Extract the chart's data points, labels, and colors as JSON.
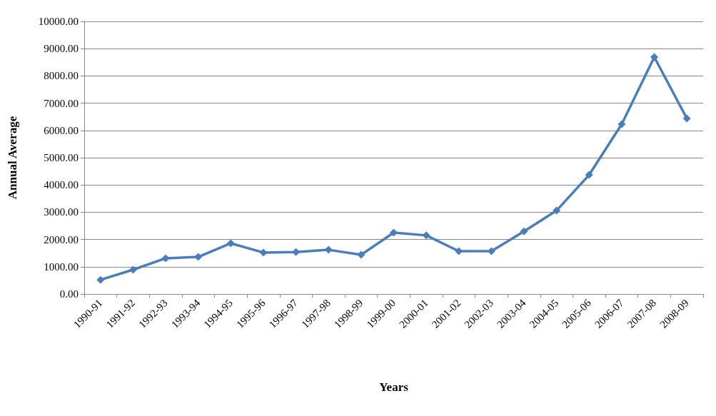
{
  "chart_data": {
    "type": "line",
    "xlabel": "Years",
    "ylabel": "Annual Average",
    "categories": [
      "1990-91",
      "1991-92",
      "1992-93",
      "1993-94",
      "1994-95",
      "1995-96",
      "1996-97",
      "1997-98",
      "1998-99",
      "1999-00",
      "2000-01",
      "2001-02",
      "2002-03",
      "2003-04",
      "2004-05",
      "2005-06",
      "2006-07",
      "2007-08",
      "2008-09"
    ],
    "series": [
      {
        "color": "#4a7ebb",
        "values": [
          520,
          890,
          1310,
          1360,
          1860,
          1520,
          1540,
          1620,
          1440,
          2250,
          2150,
          1570,
          1570,
          2300,
          3060,
          4370,
          6230,
          8690,
          6440
        ]
      }
    ],
    "ylim": [
      0,
      10000
    ],
    "yticks": [
      {
        "value": 0,
        "label": "0.00"
      },
      {
        "value": 1000,
        "label": "1000.00"
      },
      {
        "value": 2000,
        "label": "2000.00"
      },
      {
        "value": 3000,
        "label": "3000.00"
      },
      {
        "value": 4000,
        "label": "4000.00"
      },
      {
        "value": 5000,
        "label": "5000.00"
      },
      {
        "value": 6000,
        "label": "6000.00"
      },
      {
        "value": 7000,
        "label": "7000.00"
      },
      {
        "value": 8000,
        "label": "8000.00"
      },
      {
        "value": 9000,
        "label": "9000.00"
      },
      {
        "value": 10000,
        "label": "10000.00"
      }
    ],
    "grid": "y",
    "marker": "diamond",
    "line_style": "solid"
  }
}
